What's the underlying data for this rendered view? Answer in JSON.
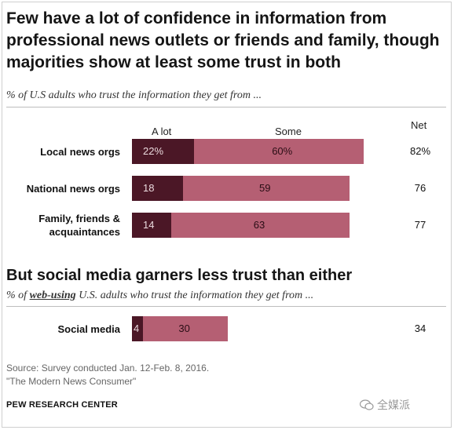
{
  "title": "Few have a lot of confidence in information from professional news outlets or friends and family, though majorities show at least some trust in both",
  "subtitle": "% of U.S adults who trust the information they get from ...",
  "section2_title": "But social media garners less trust than either",
  "subtitle2_prefix": "% of",
  "subtitle2_web": "web-using",
  "subtitle2_suffix": "U.S. adults who trust the information they get from ...",
  "source_line1": "Source: Survey conducted Jan. 12-Feb. 8, 2016.",
  "source_line2": "\"The Modern News Consumer\"",
  "org": "PEW RESEARCH CENTER",
  "watermark_text": "全媒派",
  "colors": {
    "a_lot": "#4b1726",
    "some": "#b55f73"
  },
  "chart_data": [
    {
      "type": "bar",
      "orientation": "horizontal",
      "stacked": true,
      "column_headers": {
        "a_lot": "A lot",
        "some": "Some",
        "net": "Net"
      },
      "categories": [
        "Local news orgs",
        "National news orgs",
        "Family, friends & acquaintances"
      ],
      "category_lines": [
        [
          "Local news orgs"
        ],
        [
          "National news orgs"
        ],
        [
          "Family, friends &",
          "acquaintances"
        ]
      ],
      "series": [
        {
          "name": "A lot",
          "values": [
            22,
            18,
            14
          ]
        },
        {
          "name": "Some",
          "values": [
            60,
            59,
            63
          ]
        }
      ],
      "net": [
        82,
        76,
        77
      ],
      "value_labels": {
        "a_lot": [
          "22%",
          "18",
          "14"
        ],
        "some": [
          "60%",
          "59",
          "63"
        ],
        "net": [
          "82%",
          "76",
          "77"
        ]
      }
    },
    {
      "type": "bar",
      "orientation": "horizontal",
      "stacked": true,
      "categories": [
        "Social media"
      ],
      "category_lines": [
        [
          "Social media"
        ]
      ],
      "series": [
        {
          "name": "A lot",
          "values": [
            4
          ]
        },
        {
          "name": "Some",
          "values": [
            30
          ]
        }
      ],
      "net": [
        34
      ],
      "value_labels": {
        "a_lot": [
          "4"
        ],
        "some": [
          "30"
        ],
        "net": [
          "34"
        ]
      }
    }
  ]
}
